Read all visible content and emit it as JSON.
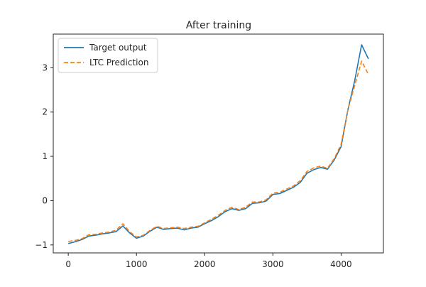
{
  "chart_data": {
    "type": "line",
    "title": "After training",
    "xlabel": "",
    "ylabel": "",
    "xlim": [
      -220,
      4620
    ],
    "ylim": [
      -1.18,
      3.76
    ],
    "xticks": [
      0,
      1000,
      2000,
      3000,
      4000
    ],
    "yticks": [
      -1,
      0,
      1,
      2,
      3
    ],
    "xtick_labels": [
      "0",
      "1000",
      "2000",
      "3000",
      "4000"
    ],
    "ytick_labels": [
      "−1",
      "0",
      "1",
      "2",
      "3"
    ],
    "grid": false,
    "legend_position": "top-left",
    "series": [
      {
        "name": "Target output",
        "color": "#1f77b4",
        "style": "solid",
        "x": [
          0,
          100,
          200,
          300,
          400,
          500,
          600,
          700,
          800,
          900,
          1000,
          1100,
          1200,
          1300,
          1400,
          1500,
          1600,
          1700,
          1800,
          1900,
          2000,
          2100,
          2200,
          2300,
          2400,
          2500,
          2600,
          2700,
          2800,
          2900,
          3000,
          3100,
          3200,
          3300,
          3400,
          3500,
          3600,
          3700,
          3800,
          3900,
          4000,
          4100,
          4200,
          4300,
          4400
        ],
        "y": [
          -0.97,
          -0.93,
          -0.88,
          -0.8,
          -0.78,
          -0.75,
          -0.73,
          -0.7,
          -0.57,
          -0.73,
          -0.85,
          -0.8,
          -0.69,
          -0.6,
          -0.65,
          -0.63,
          -0.62,
          -0.66,
          -0.62,
          -0.6,
          -0.52,
          -0.45,
          -0.36,
          -0.25,
          -0.18,
          -0.22,
          -0.18,
          -0.06,
          -0.05,
          -0.01,
          0.14,
          0.16,
          0.23,
          0.3,
          0.41,
          0.62,
          0.7,
          0.75,
          0.71,
          0.92,
          1.22,
          2.05,
          2.71,
          3.52,
          3.2
        ]
      },
      {
        "name": "LTC Prediction",
        "color": "#ff7f0e",
        "style": "dashed",
        "x": [
          0,
          100,
          200,
          300,
          400,
          500,
          600,
          700,
          800,
          900,
          1000,
          1100,
          1200,
          1300,
          1400,
          1500,
          1600,
          1700,
          1800,
          1900,
          2000,
          2100,
          2200,
          2300,
          2400,
          2500,
          2600,
          2700,
          2800,
          2900,
          3000,
          3100,
          3200,
          3300,
          3400,
          3500,
          3600,
          3700,
          3800,
          3900,
          4000,
          4100,
          4200,
          4300,
          4400
        ],
        "y": [
          -0.92,
          -0.9,
          -0.86,
          -0.77,
          -0.76,
          -0.73,
          -0.71,
          -0.67,
          -0.52,
          -0.7,
          -0.82,
          -0.78,
          -0.67,
          -0.58,
          -0.63,
          -0.61,
          -0.6,
          -0.63,
          -0.6,
          -0.58,
          -0.5,
          -0.42,
          -0.33,
          -0.22,
          -0.15,
          -0.2,
          -0.15,
          -0.03,
          -0.03,
          0.02,
          0.17,
          0.19,
          0.26,
          0.33,
          0.45,
          0.66,
          0.74,
          0.78,
          0.73,
          0.95,
          1.27,
          2.05,
          2.6,
          3.15,
          2.85
        ]
      }
    ]
  }
}
